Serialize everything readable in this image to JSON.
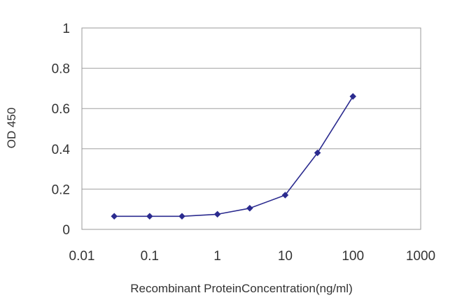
{
  "chart_data": {
    "type": "line",
    "title": "",
    "xlabel": "Recombinant ProteinConcentration(ng/ml)",
    "ylabel": "OD 450",
    "x_scale": "log",
    "xlim": [
      0.01,
      1000
    ],
    "ylim": [
      0,
      1
    ],
    "x_ticks": [
      0.01,
      0.1,
      1,
      10,
      100,
      1000
    ],
    "x_tick_labels": [
      "0.01",
      "0.1",
      "1",
      "10",
      "100",
      "1000"
    ],
    "y_ticks": [
      0,
      0.2,
      0.4,
      0.6,
      0.8,
      1
    ],
    "y_tick_labels": [
      "0",
      "0.2",
      "0.4",
      "0.6",
      "0.8",
      "1"
    ],
    "grid": "horizontal",
    "legend": "none",
    "series": [
      {
        "color": "#2b2b8f",
        "marker": "diamond",
        "x": [
          0.03,
          0.1,
          0.3,
          1,
          3,
          10,
          30,
          100
        ],
        "y": [
          0.065,
          0.065,
          0.065,
          0.075,
          0.105,
          0.17,
          0.38,
          0.66
        ]
      }
    ]
  }
}
